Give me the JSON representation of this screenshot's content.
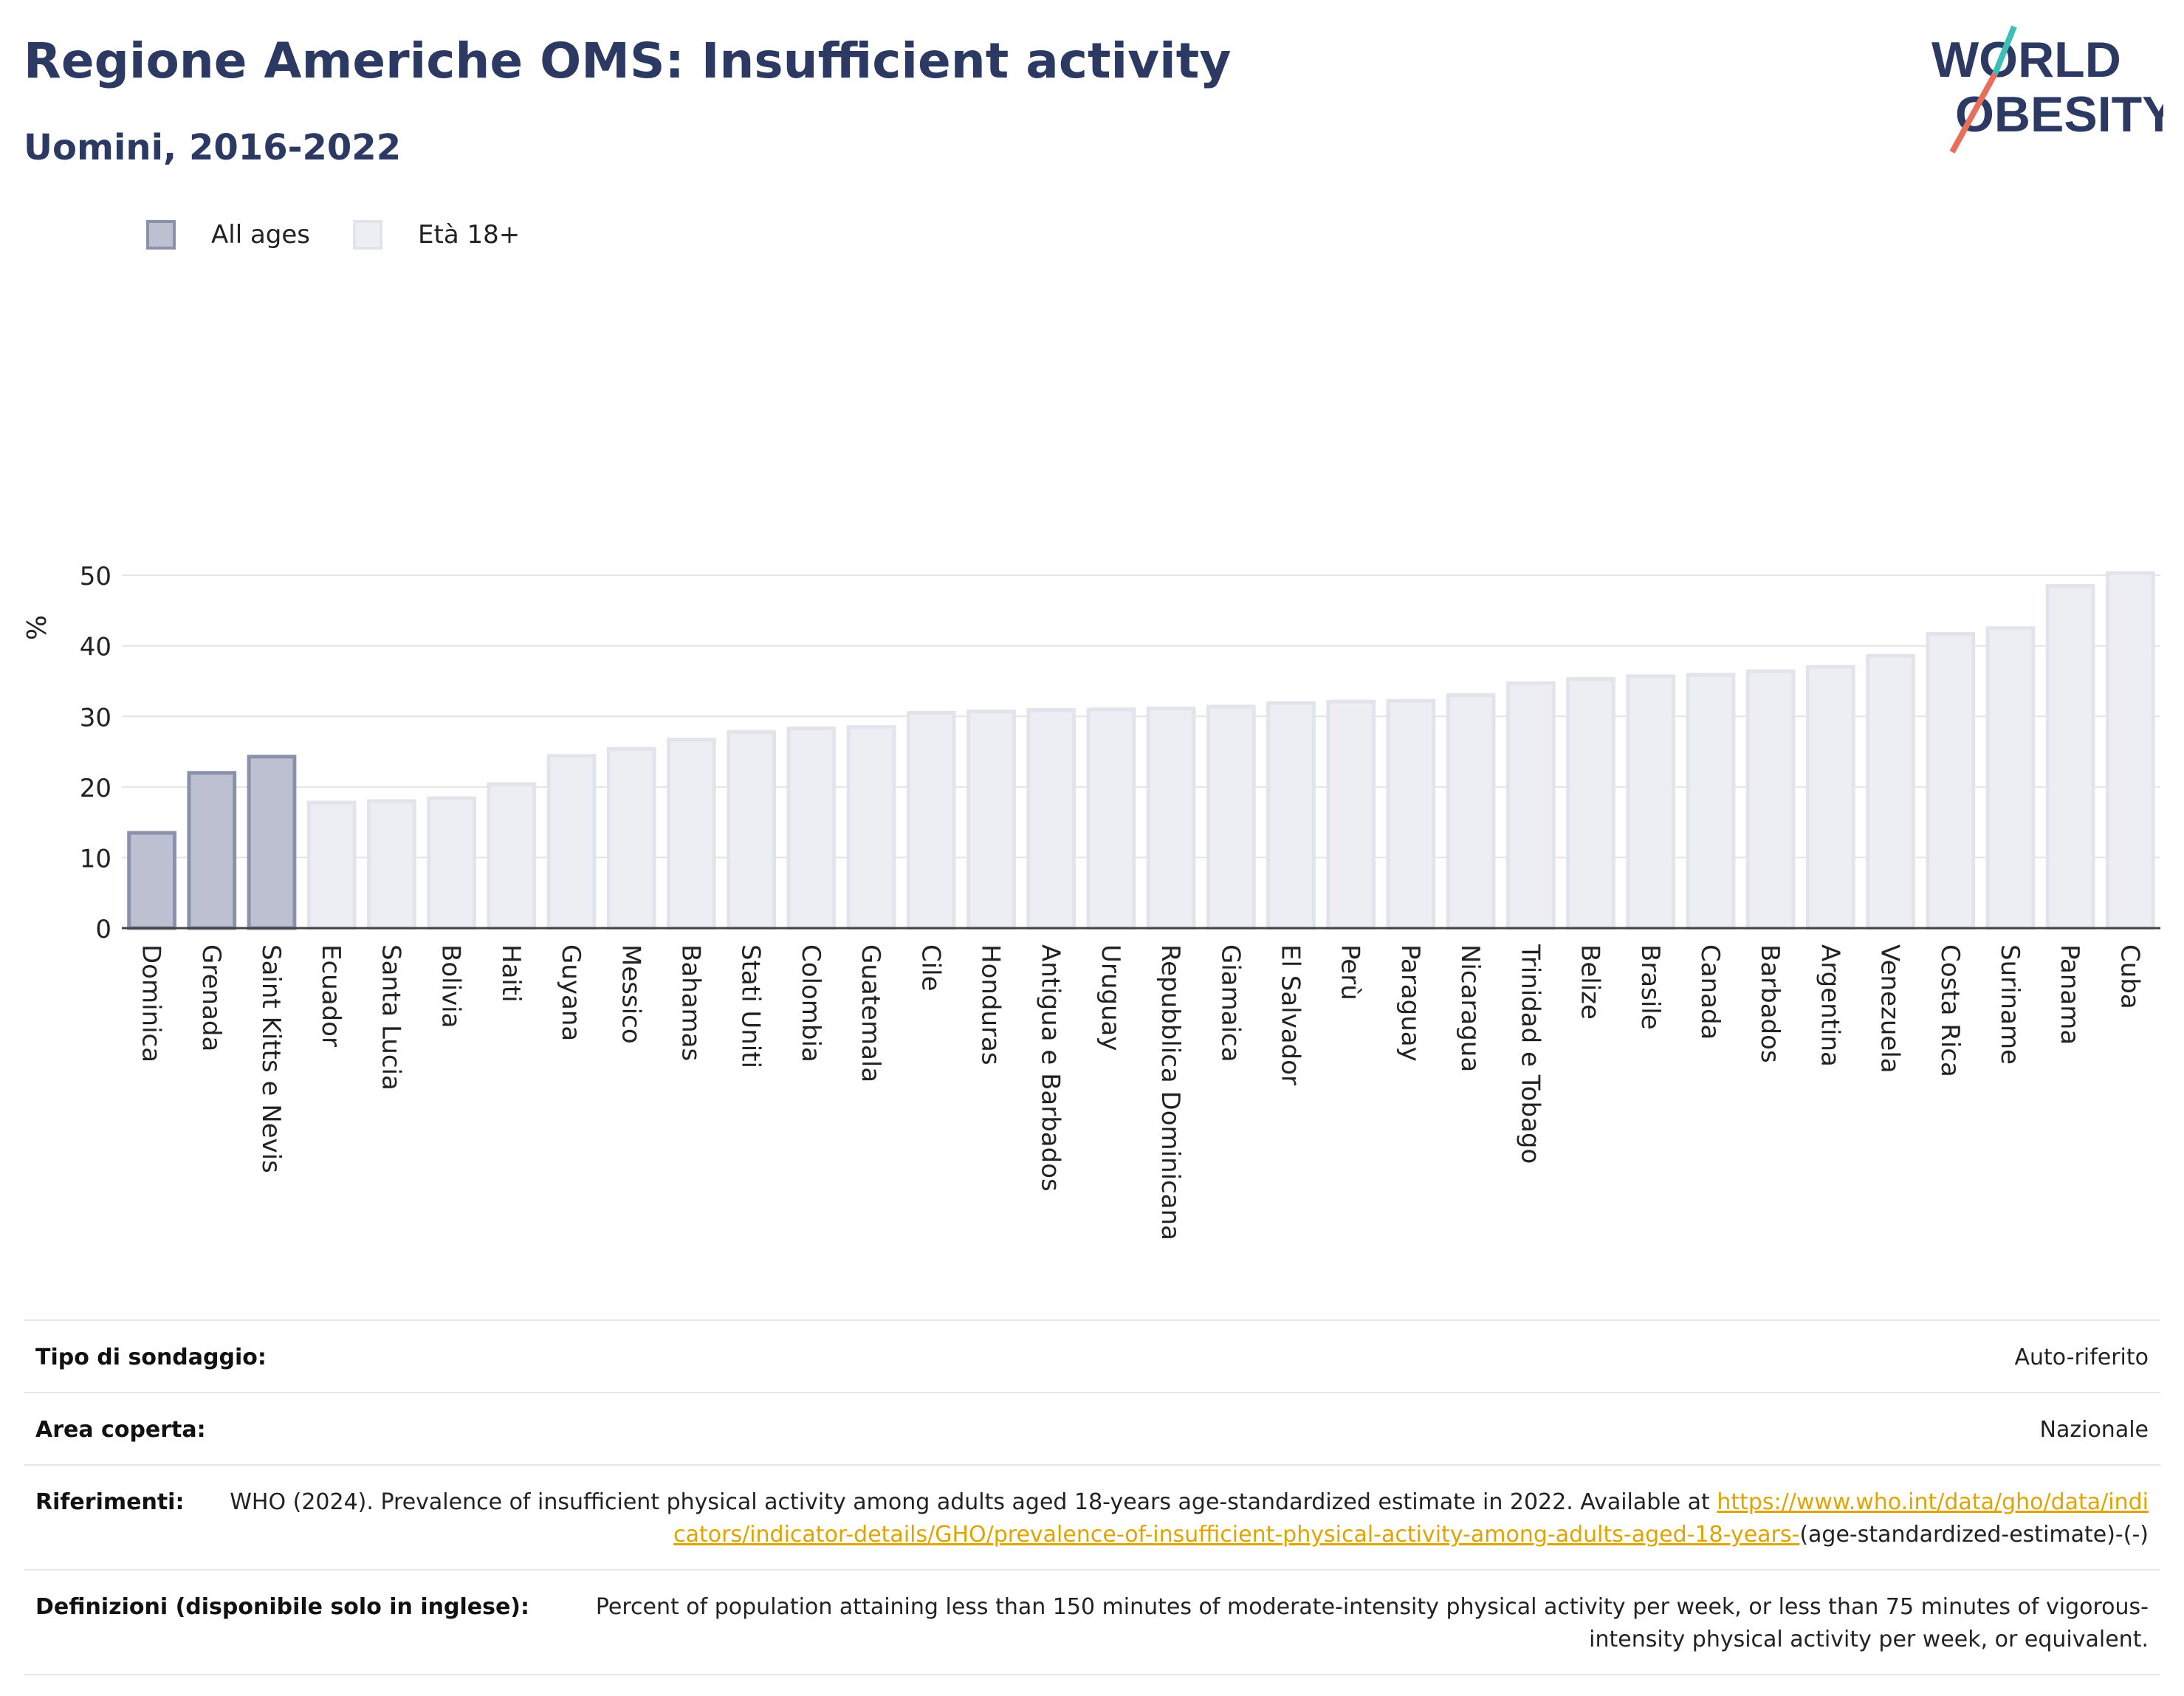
{
  "header": {
    "title": "Regione Americhe OMS: Insufficient activity",
    "subtitle": "Uomini, 2016-2022"
  },
  "logo": {
    "line1": "WORLD",
    "line2": "OBESITY",
    "colors": {
      "text": "#2c3a63",
      "slash_top": "#3bbfb6",
      "slash_bottom": "#e86f5c"
    }
  },
  "legend": [
    {
      "label": "All ages",
      "fill": "#bcc0d1",
      "stroke": "#8b91ab"
    },
    {
      "label": "Età 18+",
      "fill": "#edeef3",
      "stroke": "#e2e4ec"
    }
  ],
  "chart_data": {
    "type": "bar",
    "ylabel": "%",
    "xlabel": "",
    "ylim": [
      0,
      52
    ],
    "yticks": [
      0,
      10,
      20,
      30,
      40,
      50
    ],
    "grid": true,
    "legend_position": "top-left",
    "categories": [
      "Dominica",
      "Grenada",
      "Saint Kitts e Nevis",
      "Ecuador",
      "Santa Lucia",
      "Bolivia",
      "Haiti",
      "Guyana",
      "Messico",
      "Bahamas",
      "Stati Uniti",
      "Colombia",
      "Guatemala",
      "Cile",
      "Honduras",
      "Antigua e Barbados",
      "Uruguay",
      "Repubblica Dominicana",
      "Giamaica",
      "El Salvador",
      "Perù",
      "Paraguay",
      "Nicaragua",
      "Trinidad e Tobago",
      "Belize",
      "Brasile",
      "Canada",
      "Barbados",
      "Argentina",
      "Venezuela",
      "Costa Rica",
      "Suriname",
      "Panama",
      "Cuba"
    ],
    "values": [
      13.5,
      22,
      24.3,
      17.8,
      18,
      18.4,
      20.4,
      24.4,
      25.4,
      26.7,
      27.8,
      28.3,
      28.5,
      30.5,
      30.7,
      30.9,
      31,
      31.1,
      31.4,
      31.9,
      32.1,
      32.2,
      33,
      34.7,
      35.3,
      35.7,
      35.9,
      36.4,
      37,
      38.6,
      41.7,
      42.5,
      48.5,
      50.3
    ],
    "series_group": [
      "All ages",
      "All ages",
      "All ages",
      "Età 18+",
      "Età 18+",
      "Età 18+",
      "Età 18+",
      "Età 18+",
      "Età 18+",
      "Età 18+",
      "Età 18+",
      "Età 18+",
      "Età 18+",
      "Età 18+",
      "Età 18+",
      "Età 18+",
      "Età 18+",
      "Età 18+",
      "Età 18+",
      "Età 18+",
      "Età 18+",
      "Età 18+",
      "Età 18+",
      "Età 18+",
      "Età 18+",
      "Età 18+",
      "Età 18+",
      "Età 18+",
      "Età 18+",
      "Età 18+",
      "Età 18+",
      "Età 18+",
      "Età 18+",
      "Età 18+"
    ]
  },
  "meta": {
    "survey_type": {
      "label": "Tipo di sondaggio:",
      "value": "Auto-riferito"
    },
    "area": {
      "label": "Area coperta:",
      "value": "Nazionale"
    },
    "references": {
      "label": "Riferimenti:",
      "text": "WHO (2024). Prevalence of insufficient physical activity among adults aged 18-years age-standardized estimate in 2022. Available at",
      "link": "https://www.who.int/data/gho/data/indicators/indicator-details/GHO/prevalence-of-insufficient-physical-activity-among-adults-aged-18-years-",
      "suffix": "(age-standardized-estimate)-(-)"
    },
    "definitions": {
      "label": "Definizioni (disponibile solo in inglese):",
      "value": "Percent of population attaining less than 150 minutes of moderate-intensity physical activity per week, or less than 75 minutes of vigorous-intensity physical activity per week, or equivalent."
    }
  }
}
